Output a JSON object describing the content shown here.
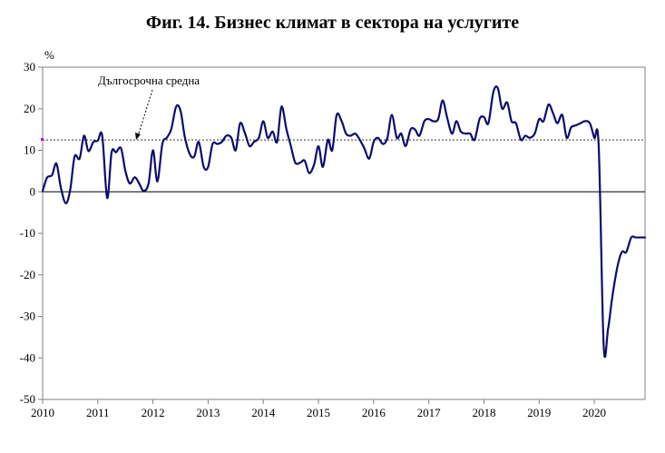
{
  "chart_data": {
    "type": "line",
    "title": "Фиг. 14. Бизнес климат в сектора на услугите",
    "ylabel": "%",
    "xlabel": "",
    "ylim": [
      -50,
      30
    ],
    "yticks": [
      30,
      20,
      10,
      0,
      -10,
      -20,
      -30,
      -40,
      -50
    ],
    "xlim": [
      2010,
      2020.92
    ],
    "xticks": [
      "2010",
      "2011",
      "2012",
      "2013",
      "2014",
      "2015",
      "2016",
      "2017",
      "2018",
      "2019",
      "2020"
    ],
    "long_term_average": {
      "label": "Дългосрочна средна",
      "value": 12.5
    },
    "series": [
      {
        "name": "Бизнес климат в сектора на услугите",
        "color": "#0b0b6e",
        "x": [
          2010.0,
          2010.08,
          2010.17,
          2010.25,
          2010.33,
          2010.42,
          2010.5,
          2010.58,
          2010.67,
          2010.75,
          2010.83,
          2010.92,
          2011.0,
          2011.08,
          2011.17,
          2011.25,
          2011.33,
          2011.42,
          2011.5,
          2011.58,
          2011.67,
          2011.75,
          2011.83,
          2011.92,
          2012.0,
          2012.08,
          2012.17,
          2012.25,
          2012.33,
          2012.42,
          2012.5,
          2012.58,
          2012.67,
          2012.75,
          2012.83,
          2012.92,
          2013.0,
          2013.08,
          2013.17,
          2013.25,
          2013.33,
          2013.42,
          2013.5,
          2013.58,
          2013.67,
          2013.75,
          2013.83,
          2013.92,
          2014.0,
          2014.08,
          2014.17,
          2014.25,
          2014.33,
          2014.42,
          2014.5,
          2014.58,
          2014.67,
          2014.75,
          2014.83,
          2014.92,
          2015.0,
          2015.08,
          2015.17,
          2015.25,
          2015.33,
          2015.42,
          2015.5,
          2015.58,
          2015.67,
          2015.75,
          2015.83,
          2015.92,
          2016.0,
          2016.08,
          2016.17,
          2016.25,
          2016.33,
          2016.42,
          2016.5,
          2016.58,
          2016.67,
          2016.75,
          2016.83,
          2016.92,
          2017.0,
          2017.08,
          2017.17,
          2017.25,
          2017.33,
          2017.42,
          2017.5,
          2017.58,
          2017.67,
          2017.75,
          2017.83,
          2017.92,
          2018.0,
          2018.08,
          2018.17,
          2018.25,
          2018.33,
          2018.42,
          2018.5,
          2018.58,
          2018.67,
          2018.75,
          2018.83,
          2018.92,
          2019.0,
          2019.08,
          2019.17,
          2019.25,
          2019.33,
          2019.42,
          2019.5,
          2019.58,
          2019.67,
          2019.75,
          2019.83,
          2019.92,
          2020.0,
          2020.08,
          2020.17,
          2020.25,
          2020.33,
          2020.42,
          2020.5,
          2020.58,
          2020.67,
          2020.75,
          2020.83,
          2020.92
        ],
        "values": [
          0.2,
          3.4,
          4.0,
          6.8,
          1.0,
          -2.8,
          0.5,
          8.5,
          8.0,
          13.5,
          9.8,
          12.0,
          12.3,
          13.5,
          -1.5,
          9.5,
          9.5,
          10.5,
          5.0,
          2.0,
          3.5,
          2.0,
          0.2,
          2.0,
          10.0,
          2.5,
          11.5,
          13.0,
          15.0,
          20.5,
          19.5,
          13.0,
          9.0,
          8.5,
          12.0,
          6.0,
          6.0,
          11.5,
          11.5,
          12.0,
          13.5,
          13.0,
          10.0,
          16.5,
          14.0,
          11.0,
          12.0,
          13.0,
          17.0,
          13.0,
          14.5,
          12.0,
          20.5,
          15.0,
          11.0,
          7.0,
          7.0,
          7.5,
          4.5,
          6.5,
          11.0,
          6.0,
          12.5,
          10.0,
          18.5,
          17.0,
          14.0,
          13.5,
          14.0,
          12.5,
          10.5,
          8.0,
          12.0,
          13.0,
          11.5,
          13.0,
          18.5,
          13.0,
          14.0,
          11.0,
          15.0,
          15.0,
          13.5,
          17.0,
          17.5,
          17.0,
          17.5,
          22.0,
          18.0,
          14.0,
          17.0,
          14.5,
          14.0,
          14.0,
          12.5,
          17.5,
          18.0,
          16.5,
          24.0,
          25.0,
          20.0,
          21.5,
          17.0,
          16.5,
          12.5,
          13.5,
          13.0,
          14.0,
          17.5,
          17.0,
          21.0,
          19.0,
          16.5,
          18.5,
          13.0,
          15.5,
          16.0,
          16.5,
          17.0,
          16.5,
          13.0,
          11.0,
          -37.0,
          -33.0,
          -25.0,
          -18.0,
          -14.5,
          -14.5,
          -11.0,
          -11.0,
          -11.0,
          -11.0
        ]
      }
    ]
  }
}
